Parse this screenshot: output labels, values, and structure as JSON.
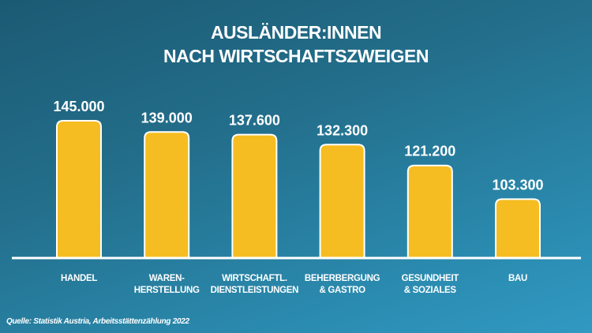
{
  "chart_data": {
    "type": "bar",
    "title": [
      "AUSLÄNDER:INNEN",
      "NACH WIRTSCHAFTSZWEIGEN"
    ],
    "categories": [
      [
        "HANDEL"
      ],
      [
        "WAREN-",
        "HERSTELLUNG"
      ],
      [
        "WIRTSCHAFTL.",
        "DIENSTLEISTUNGEN"
      ],
      [
        "BEHERBERGUNG",
        "& GASTRO"
      ],
      [
        "GESUNDHEIT",
        "& SOZIALES"
      ],
      [
        "BAU"
      ]
    ],
    "values": [
      145000,
      139000,
      137600,
      132300,
      121200,
      103300
    ],
    "value_labels": [
      "145.000",
      "139.000",
      "137.600",
      "132.300",
      "121.200",
      "103.300"
    ],
    "xlabel": "",
    "ylabel": "",
    "ylim": [
      72000,
      145000
    ],
    "grid": false,
    "bar_color": "#f5bd21",
    "source": "Quelle: Statistik Austria, Arbeitsstättenzählung 2022"
  }
}
